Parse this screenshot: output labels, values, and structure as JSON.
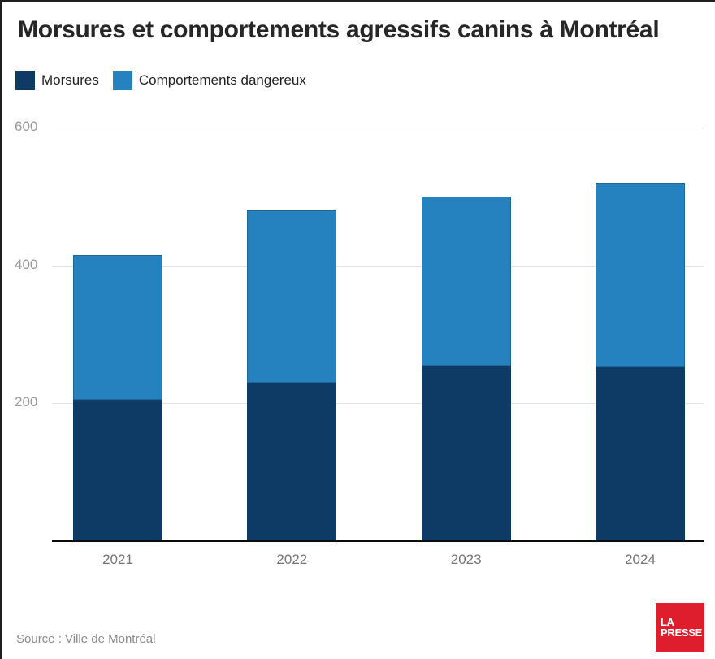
{
  "title": "Morsures et comportements agressifs canins à Montréal",
  "legend": [
    {
      "label": "Morsures",
      "color": "#0e3a66"
    },
    {
      "label": "Comportements dangereux",
      "color": "#2682bf"
    }
  ],
  "chart_data": {
    "type": "bar",
    "stacked": true,
    "title": "Morsures et comportements agressifs canins à Montréal",
    "categories": [
      "2021",
      "2022",
      "2023",
      "2024"
    ],
    "series": [
      {
        "name": "Morsures",
        "color": "#0e3a66",
        "values": [
          205,
          230,
          255,
          252
        ]
      },
      {
        "name": "Comportements dangereux",
        "color": "#2682bf",
        "values": [
          210,
          250,
          245,
          268
        ]
      }
    ],
    "totals": [
      415,
      480,
      500,
      520
    ],
    "xlabel": "",
    "ylabel": "",
    "ylim": [
      0,
      600
    ],
    "yticks": [
      200,
      400,
      600
    ],
    "grid": true,
    "legend_position": "top-left",
    "bar_edge_color": "rgba(16,60,92,0.35)"
  },
  "footer": {
    "source": "Source : Ville de Montréal",
    "logo_line1": "LA",
    "logo_line2": "PRESSE",
    "logo_color": "#de1e2d"
  }
}
